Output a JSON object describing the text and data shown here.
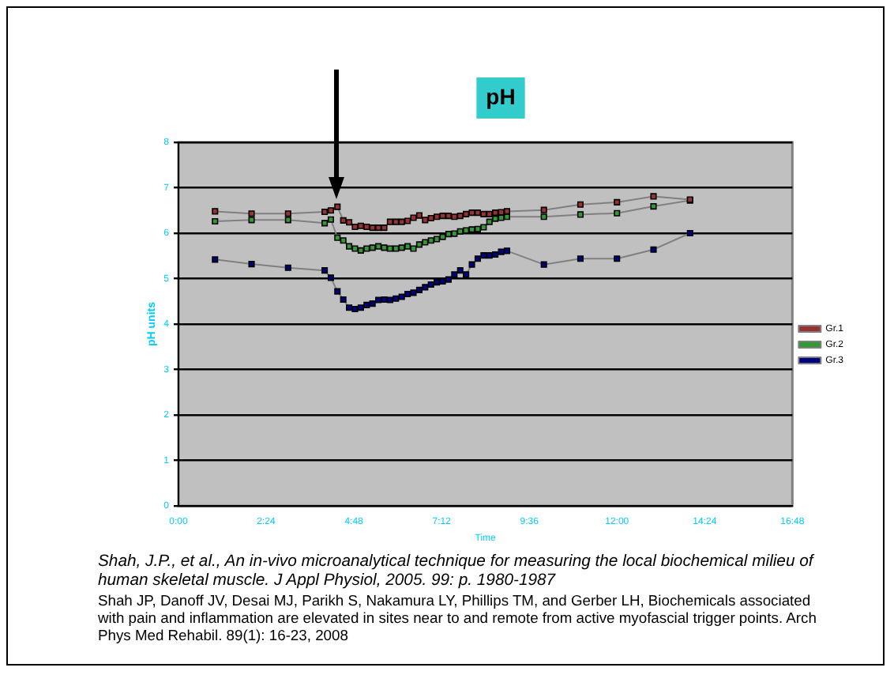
{
  "chart_data": {
    "type": "line",
    "title": "pH",
    "xlabel": "Time",
    "ylabel": "pH units",
    "xlim": [
      0,
      16.8
    ],
    "ylim": [
      0,
      8
    ],
    "xticks": [
      {
        "value": 0,
        "label": "0:00"
      },
      {
        "value": 2.4,
        "label": "2:24"
      },
      {
        "value": 4.8,
        "label": "4:48"
      },
      {
        "value": 7.2,
        "label": "7:12"
      },
      {
        "value": 9.6,
        "label": "9:36"
      },
      {
        "value": 12,
        "label": "12:00"
      },
      {
        "value": 14.4,
        "label": "14:24"
      },
      {
        "value": 16.8,
        "label": "16:48"
      }
    ],
    "yticks": [
      0,
      1,
      2,
      3,
      4,
      5,
      6,
      7,
      8
    ],
    "grid": "y",
    "legend": "right",
    "marker": "square",
    "line_style": "solid",
    "x": [
      1,
      2,
      3,
      4,
      4.17,
      4.35,
      4.51,
      4.67,
      4.83,
      4.99,
      5.15,
      5.31,
      5.47,
      5.63,
      5.79,
      5.95,
      6.11,
      6.27,
      6.43,
      6.59,
      6.75,
      6.91,
      7.07,
      7.23,
      7.39,
      7.55,
      7.71,
      7.87,
      8.03,
      8.19,
      8.35,
      8.51,
      8.67,
      8.83,
      8.99,
      10,
      11,
      12,
      13,
      14
    ],
    "series": [
      {
        "name": "Gr.1",
        "color": "#993333",
        "values": [
          6.48,
          6.43,
          6.43,
          6.47,
          6.5,
          6.58,
          6.28,
          6.24,
          6.14,
          6.16,
          6.14,
          6.12,
          6.12,
          6.12,
          6.25,
          6.25,
          6.25,
          6.27,
          6.34,
          6.39,
          6.29,
          6.33,
          6.36,
          6.38,
          6.38,
          6.36,
          6.38,
          6.42,
          6.45,
          6.45,
          6.42,
          6.42,
          6.45,
          6.46,
          6.48,
          6.51,
          6.63,
          6.68,
          6.81,
          6.74
        ]
      },
      {
        "name": "Gr.2",
        "color": "#339933",
        "values": [
          6.26,
          6.29,
          6.29,
          6.22,
          6.3,
          5.9,
          5.84,
          5.71,
          5.66,
          5.62,
          5.66,
          5.68,
          5.71,
          5.68,
          5.66,
          5.66,
          5.68,
          5.71,
          5.66,
          5.75,
          5.8,
          5.84,
          5.87,
          5.92,
          5.98,
          5.99,
          6.04,
          6.06,
          6.08,
          6.09,
          6.13,
          6.25,
          6.32,
          6.34,
          6.36,
          6.36,
          6.41,
          6.44,
          6.59,
          6.72
        ]
      },
      {
        "name": "Gr.3",
        "color": "#000080",
        "values": [
          5.42,
          5.32,
          5.24,
          5.18,
          5.02,
          4.72,
          4.54,
          4.36,
          4.33,
          4.36,
          4.42,
          4.45,
          4.53,
          4.54,
          4.53,
          4.56,
          4.6,
          4.66,
          4.69,
          4.75,
          4.81,
          4.87,
          4.92,
          4.94,
          4.98,
          5.09,
          5.18,
          5.09,
          5.31,
          5.44,
          5.51,
          5.51,
          5.53,
          5.59,
          5.61,
          5.31,
          5.44,
          5.44,
          5.64,
          6.0
        ]
      }
    ],
    "annotations": [
      "Shah, J.P., et al., An in-vivo microanalytical technique for measuring the local biochemical milieu of human skeletal muscle. J Appl Physiol, 2005. 99: p. 1980-1987",
      "Shah JP, Danoff JV, Desai MJ, Parikh S, Nakamura LY, Phillips TM, and Gerber LH, Biochemicals associated with pain and inflammation are elevated in sites near to and remote from active myofascial trigger points. Arch Phys Med Rehabil. 89(1): 16-23, 2008"
    ]
  }
}
